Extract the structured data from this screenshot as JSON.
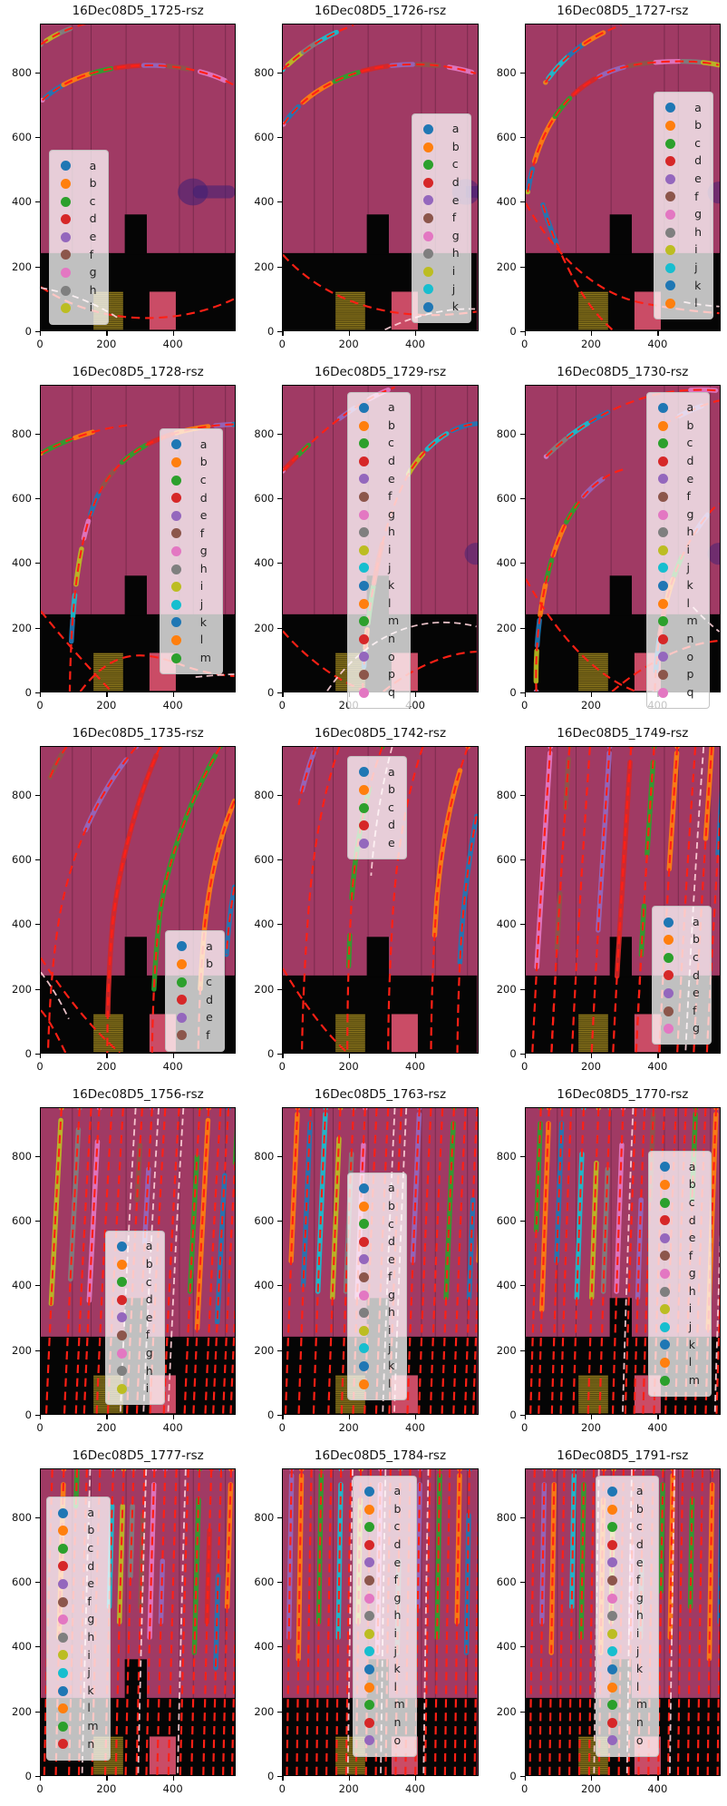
{
  "figure": {
    "rows": 5,
    "cols": 3,
    "description": "grid of image subplots with tracking overlays"
  },
  "color_cycle": [
    "#1f77b4",
    "#ff7f0e",
    "#2ca02c",
    "#d62728",
    "#9467bd",
    "#8c564b",
    "#e377c2",
    "#7f7f7f",
    "#bcbd22",
    "#17becf"
  ],
  "axes": {
    "x_ticks": [
      "0",
      "200",
      "400"
    ],
    "y_ticks": [
      "800",
      "600",
      "400",
      "200",
      "0"
    ]
  },
  "chart_data": {
    "type": "image",
    "note": "5x3 grid of matplotlib imshow subplots; magenta scene with black lower band, red dashed trajectory curves and colored dashed instance-segment chains; each subplot has an alphabetic legend whose marker colors follow the matplotlib tab10 cycle",
    "x_range": [
      0,
      590
    ],
    "y_range": [
      0,
      950
    ],
    "x_ticks": [
      0,
      200,
      400
    ],
    "y_ticks": [
      0,
      200,
      400,
      600,
      800
    ],
    "legend_color_cycle_names": [
      "blue",
      "orange",
      "green",
      "red",
      "purple",
      "brown",
      "pink",
      "gray",
      "olive",
      "cyan"
    ],
    "subplots": [
      {
        "title": "16Dec08D5_1725-rsz",
        "legend_labels": [
          "a",
          "b",
          "c",
          "d",
          "e",
          "f",
          "g",
          "h",
          "i"
        ]
      },
      {
        "title": "16Dec08D5_1726-rsz",
        "legend_labels": [
          "a",
          "b",
          "c",
          "d",
          "e",
          "f",
          "g",
          "h",
          "i",
          "j",
          "k"
        ]
      },
      {
        "title": "16Dec08D5_1727-rsz",
        "legend_labels": [
          "a",
          "b",
          "c",
          "d",
          "e",
          "f",
          "g",
          "h",
          "i",
          "j",
          "k",
          "l"
        ]
      },
      {
        "title": "16Dec08D5_1728-rsz",
        "legend_labels": [
          "a",
          "b",
          "c",
          "d",
          "e",
          "f",
          "g",
          "h",
          "i",
          "j",
          "k",
          "l",
          "m"
        ]
      },
      {
        "title": "16Dec08D5_1729-rsz",
        "legend_labels": [
          "a",
          "b",
          "c",
          "d",
          "e",
          "f",
          "g",
          "h",
          "i",
          "j",
          "k",
          "l",
          "m",
          "n",
          "o",
          "p",
          "q"
        ]
      },
      {
        "title": "16Dec08D5_1730-rsz",
        "legend_labels": [
          "a",
          "b",
          "c",
          "d",
          "e",
          "f",
          "g",
          "h",
          "i",
          "j",
          "k",
          "l",
          "m",
          "n",
          "o",
          "p",
          "q"
        ]
      },
      {
        "title": "16Dec08D5_1735-rsz",
        "legend_labels": [
          "a",
          "b",
          "c",
          "d",
          "e",
          "f"
        ]
      },
      {
        "title": "16Dec08D5_1742-rsz",
        "legend_labels": [
          "a",
          "b",
          "c",
          "d",
          "e"
        ]
      },
      {
        "title": "16Dec08D5_1749-rsz",
        "legend_labels": [
          "a",
          "b",
          "c",
          "d",
          "e",
          "f",
          "g"
        ]
      },
      {
        "title": "16Dec08D5_1756-rsz",
        "legend_labels": [
          "a",
          "b",
          "c",
          "d",
          "e",
          "f",
          "g",
          "h",
          "i"
        ]
      },
      {
        "title": "16Dec08D5_1763-rsz",
        "legend_labels": [
          "a",
          "b",
          "c",
          "d",
          "e",
          "f",
          "g",
          "h",
          "i",
          "j",
          "k",
          "l"
        ]
      },
      {
        "title": "16Dec08D5_1770-rsz",
        "legend_labels": [
          "a",
          "b",
          "c",
          "d",
          "e",
          "f",
          "g",
          "h",
          "i",
          "j",
          "k",
          "l",
          "m"
        ]
      },
      {
        "title": "16Dec08D5_1777-rsz",
        "legend_labels": [
          "a",
          "b",
          "c",
          "d",
          "e",
          "f",
          "g",
          "h",
          "i",
          "j",
          "k",
          "l",
          "m",
          "n"
        ]
      },
      {
        "title": "16Dec08D5_1784-rsz",
        "legend_labels": [
          "a",
          "b",
          "c",
          "d",
          "e",
          "f",
          "g",
          "h",
          "i",
          "j",
          "k",
          "l",
          "m",
          "n",
          "o"
        ]
      },
      {
        "title": "16Dec08D5_1791-rsz",
        "legend_labels": [
          "a",
          "b",
          "c",
          "d",
          "e",
          "f",
          "g",
          "h",
          "i",
          "j",
          "k",
          "l",
          "m",
          "n",
          "o"
        ]
      }
    ]
  }
}
